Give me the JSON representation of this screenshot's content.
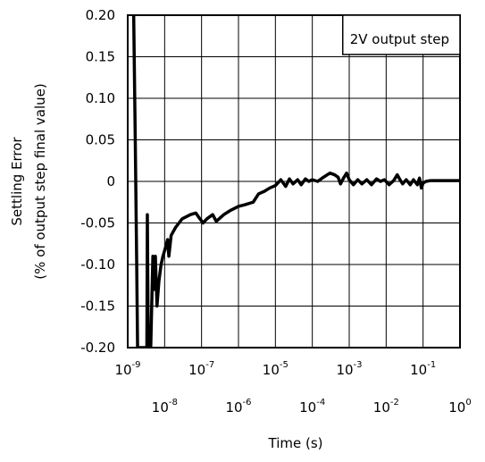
{
  "chart_data": {
    "type": "line",
    "title": "",
    "xlabel": "Time (s)",
    "ylabel": [
      "Settling Error",
      "(% of output step final value)"
    ],
    "annotation": "2V output step",
    "x_scale": "log",
    "xlim": [
      1e-09,
      1
    ],
    "ylim": [
      -0.2,
      0.2
    ],
    "grid": true,
    "legend": "none",
    "y_ticks": [
      "0.20",
      "0.15",
      "0.10",
      "0.05",
      "0",
      "-0.05",
      "-0.10",
      "-0.15",
      "-0.20"
    ],
    "x_ticks": [
      {
        "base": "10",
        "exp": "-9",
        "row": "upper"
      },
      {
        "base": "10",
        "exp": "-8",
        "row": "lower"
      },
      {
        "base": "10",
        "exp": "-7",
        "row": "upper"
      },
      {
        "base": "10",
        "exp": "-6",
        "row": "lower"
      },
      {
        "base": "10",
        "exp": "-5",
        "row": "upper"
      },
      {
        "base": "10",
        "exp": "-4",
        "row": "lower"
      },
      {
        "base": "10",
        "exp": "-3",
        "row": "upper"
      },
      {
        "base": "10",
        "exp": "-2",
        "row": "lower"
      },
      {
        "base": "10",
        "exp": "-1",
        "row": "upper"
      },
      {
        "base": "10",
        "exp": "0",
        "row": "lower"
      }
    ],
    "series": [
      {
        "color": "#000000",
        "points": [
          [
            1.45e-09,
            0.2
          ],
          [
            1.6e-09,
            0.05
          ],
          [
            1.75e-09,
            -0.1
          ],
          [
            1.85e-09,
            -0.2
          ],
          [
            3.3e-09,
            -0.2
          ],
          [
            3.4e-09,
            -0.04
          ],
          [
            3.6e-09,
            -0.2
          ],
          [
            4.2e-09,
            -0.2
          ],
          [
            4.8e-09,
            -0.09
          ],
          [
            5.2e-09,
            -0.13
          ],
          [
            5.6e-09,
            -0.09
          ],
          [
            6.2e-09,
            -0.15
          ],
          [
            7e-09,
            -0.12
          ],
          [
            8e-09,
            -0.1
          ],
          [
            9e-09,
            -0.09
          ],
          [
            1.05e-08,
            -0.08
          ],
          [
            1.2e-08,
            -0.07
          ],
          [
            1.3e-08,
            -0.09
          ],
          [
            1.5e-08,
            -0.065
          ],
          [
            2e-08,
            -0.055
          ],
          [
            3e-08,
            -0.045
          ],
          [
            5e-08,
            -0.04
          ],
          [
            7e-08,
            -0.038
          ],
          [
            9e-08,
            -0.045
          ],
          [
            1.1e-07,
            -0.05
          ],
          [
            1.4e-07,
            -0.045
          ],
          [
            2e-07,
            -0.04
          ],
          [
            2.5e-07,
            -0.048
          ],
          [
            3e-07,
            -0.045
          ],
          [
            4e-07,
            -0.04
          ],
          [
            6e-07,
            -0.035
          ],
          [
            1e-06,
            -0.03
          ],
          [
            1.5e-06,
            -0.028
          ],
          [
            2.5e-06,
            -0.025
          ],
          [
            3.5e-06,
            -0.015
          ],
          [
            5e-06,
            -0.012
          ],
          [
            7e-06,
            -0.008
          ],
          [
            1e-05,
            -0.005
          ],
          [
            1.4e-05,
            0.002
          ],
          [
            1.9e-05,
            -0.006
          ],
          [
            2.4e-05,
            0.003
          ],
          [
            3e-05,
            -0.003
          ],
          [
            4e-05,
            0.002
          ],
          [
            5e-05,
            -0.004
          ],
          [
            6.5e-05,
            0.003
          ],
          [
            8e-05,
            0.0
          ],
          [
            0.0001,
            0.002
          ],
          [
            0.00014,
            0.0
          ],
          [
            0.0002,
            0.005
          ],
          [
            0.0003,
            0.01
          ],
          [
            0.0004,
            0.008
          ],
          [
            0.0005,
            0.005
          ],
          [
            0.00058,
            -0.003
          ],
          [
            0.0007,
            0.004
          ],
          [
            0.00085,
            0.01
          ],
          [
            0.001,
            0.002
          ],
          [
            0.0013,
            -0.004
          ],
          [
            0.0017,
            0.002
          ],
          [
            0.0022,
            -0.003
          ],
          [
            0.003,
            0.002
          ],
          [
            0.004,
            -0.004
          ],
          [
            0.0055,
            0.003
          ],
          [
            0.007,
            0.0
          ],
          [
            0.009,
            0.002
          ],
          [
            0.012,
            -0.004
          ],
          [
            0.016,
            0.001
          ],
          [
            0.02,
            0.008
          ],
          [
            0.023,
            0.003
          ],
          [
            0.028,
            -0.003
          ],
          [
            0.035,
            0.002
          ],
          [
            0.045,
            -0.004
          ],
          [
            0.055,
            0.002
          ],
          [
            0.07,
            -0.004
          ],
          [
            0.08,
            0.004
          ],
          [
            0.09,
            -0.008
          ],
          [
            0.1,
            -0.002
          ],
          [
            0.12,
            0.0
          ],
          [
            0.16,
            0.001
          ],
          [
            0.3,
            0.001
          ],
          [
            1.0,
            0.001
          ]
        ]
      }
    ]
  }
}
